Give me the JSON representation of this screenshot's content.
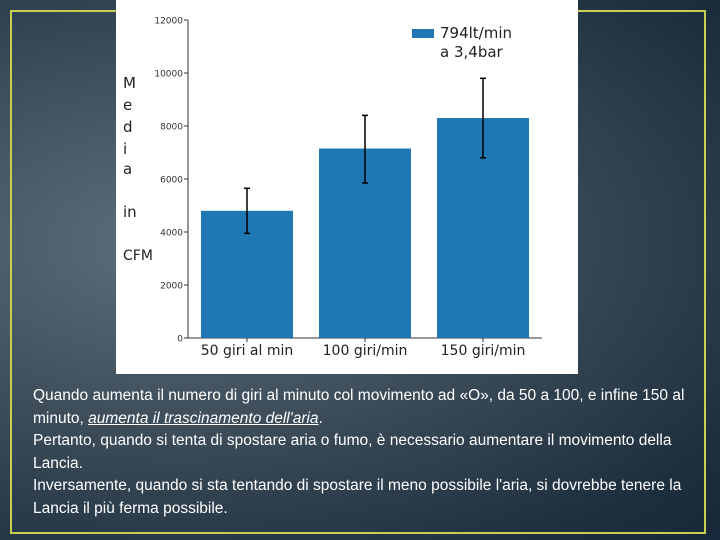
{
  "chart_data": {
    "type": "bar",
    "categories": [
      "50 giri al min",
      "100 giri/min",
      "150 giri/min"
    ],
    "values": [
      4800,
      7150,
      8300
    ],
    "error_low": [
      3950,
      5850,
      6800
    ],
    "error_high": [
      5650,
      8400,
      9800
    ],
    "ylabel_letters": [
      "M",
      "e",
      "d",
      "i",
      "a",
      "in",
      "CFM"
    ],
    "yticks": [
      0,
      2000,
      4000,
      6000,
      8000,
      10000,
      12000
    ],
    "ylim": [
      0,
      12000
    ],
    "legend": {
      "line1": "794lt/min",
      "line2": "a 3,4bar",
      "placement": "top-right"
    },
    "colors": {
      "bar": "#1f77b4",
      "error": "#000000"
    }
  },
  "caption": {
    "p1_before": "Quando aumenta il numero di giri al minuto col movimento ad «O», da 50 a 100, e infine 150 al minuto, ",
    "p1_emphasis": "aumenta il trascinamento dell'aria",
    "p1_after": ".",
    "p2": "Pertanto, quando si tenta di spostare aria o fumo, è necessario aumentare il movimento della Lancia.",
    "p3": "Inversamente, quando si sta tentando di spostare il meno possibile l'aria, si dovrebbe tenere la Lancia il più ferma possibile."
  }
}
